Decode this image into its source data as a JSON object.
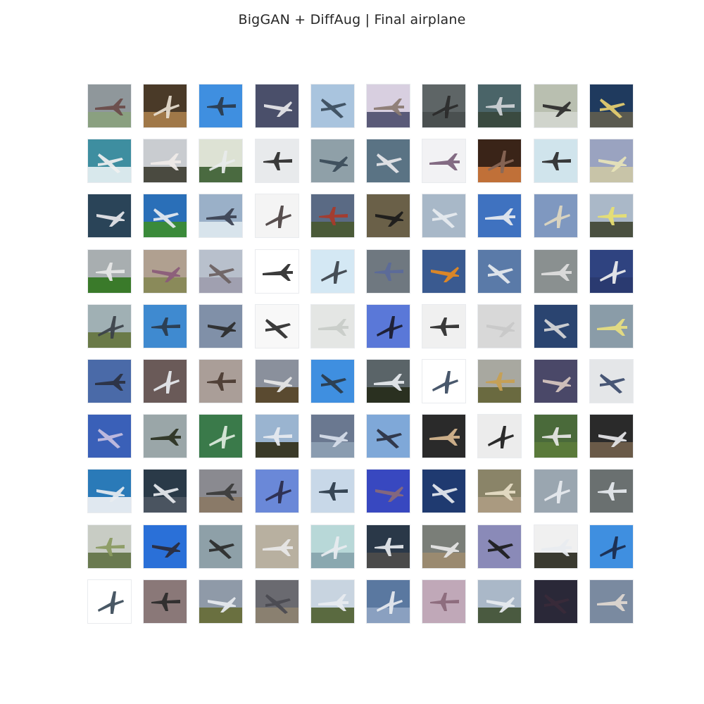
{
  "figure": {
    "title": "BigGAN + DiffAug | Final airplane"
  },
  "grid": {
    "rows": 10,
    "cols": 10,
    "cells": [
      [
        "#8f979b",
        "#4a3a28",
        "#3f8fe0",
        "#4a4f6a",
        "#a9c4de",
        "#d8cfe0",
        "#5e6566",
        "#4a6468",
        "#b9bfb0",
        "#1f3a5e"
      ],
      [
        "#3e8ea0",
        "#c9ccd0",
        "#dde2d4",
        "#e8eaec",
        "#8fa0a8",
        "#5a7384",
        "#f2f2f4",
        "#3a2418",
        "#d0e4ec",
        "#9aa3c0"
      ],
      [
        "#2a4458",
        "#2a6fb8",
        "#9ab0c8",
        "#f4f4f4",
        "#5a6a84",
        "#6a6048",
        "#a8b8c8",
        "#3f72c0",
        "#7f98c0",
        "#aab8c8"
      ],
      [
        "#a8aeb0",
        "#b0a090",
        "#b8c0cc",
        "#ffffff",
        "#d4e8f4",
        "#6f7880",
        "#3a5a90",
        "#5a7aa8",
        "#8a9090",
        "#2f4380"
      ],
      [
        "#a0b0b4",
        "#3f8ad0",
        "#8090a8",
        "#f8f8f8",
        "#e4e6e4",
        "#5a78d8",
        "#f0f0f0",
        "#d8d8d8",
        "#2a4470",
        "#8a9ca8"
      ],
      [
        "#4a6aa8",
        "#6a5a58",
        "#aa9e98",
        "#8a909c",
        "#3f8fe0",
        "#5a6468",
        "#ffffff",
        "#a8a8a0",
        "#4a4868",
        "#e4e6e8"
      ],
      [
        "#3a60b8",
        "#9aa6a8",
        "#3a7a4a",
        "#9ab4d0",
        "#6a7890",
        "#7fa8d8",
        "#2a2a2a",
        "#ececec",
        "#4a6a3a",
        "#2a2a2a"
      ],
      [
        "#2a7ab8",
        "#2a3a48",
        "#8a8a90",
        "#6a88d8",
        "#c8d8e8",
        "#3848c0",
        "#1f3a70",
        "#8a8468",
        "#9aa6b0",
        "#6a7070"
      ],
      [
        "#c8ccc4",
        "#2a70d8",
        "#8ea0a8",
        "#b8b0a0",
        "#b8d8d8",
        "#2a3848",
        "#7a7e78",
        "#8a8ab8",
        "#f0f0f0",
        "#3f8fe0"
      ],
      [
        "#ffffff",
        "#8a7878",
        "#8f9aa8",
        "#6a6a70",
        "#c8d4e0",
        "#5a78a0",
        "#c0a8b8",
        "#aab8c8",
        "#2a2838",
        "#7a8aa0"
      ]
    ],
    "ground": [
      [
        "#8aa080",
        "#a07848",
        "",
        "",
        "",
        "#5a5a78",
        "#4a5050",
        "#3a4a40",
        "#d0d4cc",
        "#5a5a50"
      ],
      [
        "#d8e8ec",
        "#4a4a40",
        "#4a6a40",
        "",
        "",
        "",
        "",
        "#c07038",
        "",
        "#c8c4a8"
      ],
      [
        "",
        "#3a8a3a",
        "#d8e4ec",
        "",
        "#4a5a38",
        "",
        "",
        "",
        "",
        "#4a5040"
      ],
      [
        "#3a7a2a",
        "#8a8a5a",
        "#a0a0b0",
        "",
        "",
        "",
        "",
        "",
        "",
        "#2a3a70"
      ],
      [
        "#6a7a48",
        "",
        "",
        "",
        "",
        "",
        "",
        "",
        "",
        ""
      ],
      [
        "",
        "",
        "",
        "#5a4a30",
        "",
        "#2a3020",
        "",
        "#6a6a40",
        "",
        ""
      ],
      [
        "",
        "",
        "",
        "#3a3a28",
        "#8a9cb0",
        "",
        "",
        "",
        "#5a7a3a",
        "#6a5a48"
      ],
      [
        "#e0e8f0",
        "#4a5460",
        "#8a7a68",
        "",
        "",
        "",
        "",
        "#aa9a80",
        "",
        ""
      ],
      [
        "#6a7a50",
        "",
        "",
        "",
        "#8aa8b0",
        "#4a4a4a",
        "#9a8a70",
        "",
        "#3a3a30",
        ""
      ],
      [
        "",
        "",
        "#6a7040",
        "#8a8070",
        "#5a6a40",
        "#8aa0c0",
        "",
        "#4a5a40",
        "",
        ""
      ]
    ],
    "planes": [
      [
        "#6a4a48",
        "#e8e0d0",
        "#2a3a4a",
        "#e8e8ec",
        "#3a4a5a",
        "#8a7a70",
        "#2a2a2a",
        "#d0d4d8",
        "#2a2a2a",
        "#e8d070"
      ],
      [
        "#f0f0f0",
        "#f0ece8",
        "#e8ecec",
        "#2a2a2a",
        "#3a4a58",
        "#e8e8ec",
        "#7a6078",
        "#8a6858",
        "#2a2a2a",
        "#e8e4b8"
      ],
      [
        "#e8e8ec",
        "#e8ecf0",
        "#3a4050",
        "#4a4040",
        "#a83a2a",
        "#1a1a1a",
        "#e8ecf0",
        "#e8ecf0",
        "#e0d8c0",
        "#e8e070"
      ],
      [
        "#e8e8e8",
        "#8a5a7a",
        "#6a6060",
        "#2a2a2a",
        "#3a4048",
        "#5a6a9a",
        "#e88a20",
        "#e8ecf0",
        "#e0e0e0",
        "#f0f0f0"
      ],
      [
        "#3a4048",
        "#2a3a4a",
        "#2a2a2a",
        "#2a2a2a",
        "#c8ccc8",
        "#1a1a2a",
        "#2a2a2a",
        "#c8c8c8",
        "#d8d8d8",
        "#e8e080"
      ],
      [
        "#2a3040",
        "#e8ecf0",
        "#4a3a30",
        "#e8e8e8",
        "#2a3a48",
        "#e8ecf0",
        "#3a4a60",
        "#c8a050",
        "#d8c8c0",
        "#3a4a6a"
      ],
      [
        "#c8c0e0",
        "#2a3020",
        "#e0ece0",
        "#e8ecf0",
        "#d8e0ec",
        "#2a3040",
        "#d8b890",
        "#1a1a1a",
        "#e8e8e8",
        "#e8e8ec"
      ],
      [
        "#e8ecf0",
        "#e8ecf0",
        "#3a3a3a",
        "#2a2a4a",
        "#2a3a48",
        "#8a6a78",
        "#e8ecf0",
        "#e8e0c8",
        "#e8ecf0",
        "#e8ecf0"
      ],
      [
        "#8a9a60",
        "#2a2a3a",
        "#2a2a2a",
        "#e8e8e8",
        "#e8ecf0",
        "#e8ecf0",
        "#e8e8e8",
        "#1a1a1a",
        "#e8ecf0",
        "#1a2a4a"
      ],
      [
        "#3a4a58",
        "#2a2a2a",
        "#e8ecf0",
        "#4a4a50",
        "#e8ecf0",
        "#e8ecf0",
        "#8a6878",
        "#e8ecf0",
        "#3a2a3a",
        "#e0d8d0"
      ]
    ]
  }
}
